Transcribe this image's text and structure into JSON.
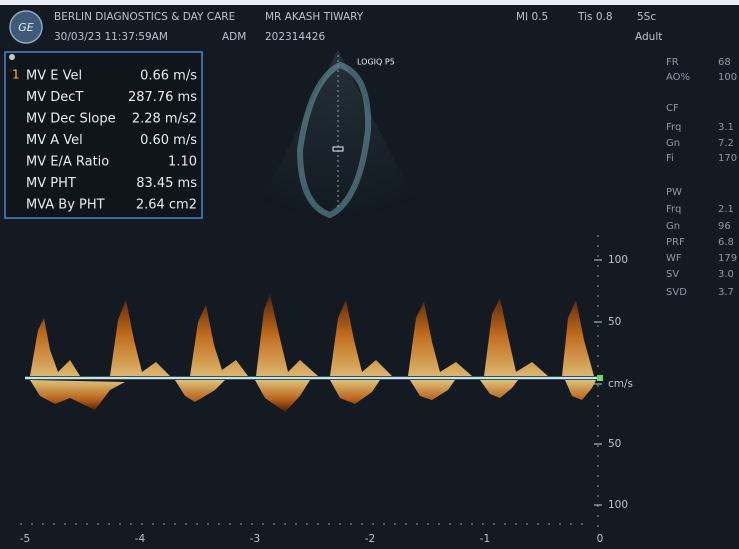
{
  "header": {
    "facility": "BERLIN DIAGNOSTICS & DAY CARE",
    "patient": "MR AKASH TIWARY",
    "datetime": "30/03/23 11:37:59AM",
    "operator": "ADM",
    "exam_id": "202314426",
    "mi": "MI 0.5",
    "tis": "Tis 0.8",
    "probe": "5Sc",
    "preset": "Adult"
  },
  "probe_label": "LOGIQ P5",
  "measurements": {
    "index": "1",
    "rows": [
      [
        "MV E Vel",
        "0.66 m/s"
      ],
      [
        "MV DecT",
        "287.76 ms"
      ],
      [
        "MV Dec Slope",
        "2.28 m/s2"
      ],
      [
        "MV A Vel",
        "0.60 m/s"
      ],
      [
        "MV E/A Ratio",
        "1.10"
      ],
      [
        "MV PHT",
        "83.45 ms"
      ],
      [
        "MVA By PHT",
        "2.64 cm2"
      ]
    ]
  },
  "side_panel": [
    [
      "FR",
      "68"
    ],
    [
      "AO%",
      "100"
    ],
    [
      "CF",
      ""
    ],
    [
      "Frq",
      "3.1"
    ],
    [
      "Gn",
      "7.2"
    ],
    [
      "Fi",
      "170"
    ],
    [
      "PW",
      ""
    ],
    [
      "Frq",
      "2.1"
    ],
    [
      "Gn",
      "96"
    ],
    [
      "PRF",
      "6.8"
    ],
    [
      "WF",
      "179"
    ],
    [
      "SV",
      "3.0"
    ],
    [
      "SVD",
      "3.7"
    ]
  ],
  "velocity_scale": [
    "100",
    "50",
    "cm/s",
    "50",
    "100"
  ],
  "time_axis": [
    "-5",
    "-4",
    "-3",
    "-2",
    "-1",
    "0"
  ]
}
